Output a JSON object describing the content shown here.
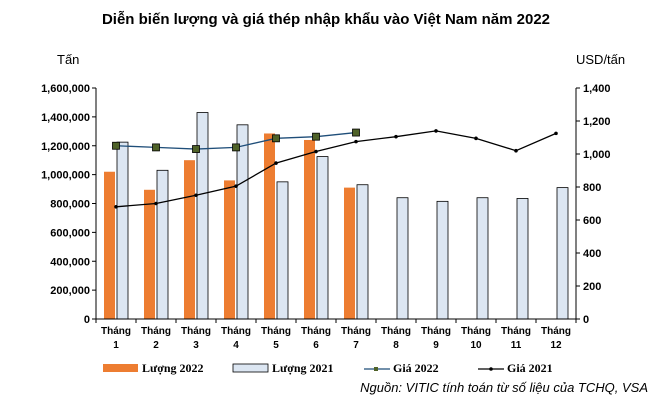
{
  "chart_data": {
    "type": "bar",
    "title": "Diễn biến lượng và giá thép nhập khẩu vào Việt Nam năm 2022",
    "ylabel_left": "Tấn",
    "ylabel_right": "USD/tấn",
    "categories": [
      [
        "Tháng",
        "1"
      ],
      [
        "Tháng",
        "2"
      ],
      [
        "Tháng",
        "3"
      ],
      [
        "Tháng",
        "4"
      ],
      [
        "Tháng",
        "5"
      ],
      [
        "Tháng",
        "6"
      ],
      [
        "Tháng",
        "7"
      ],
      [
        "Tháng",
        "8"
      ],
      [
        "Tháng",
        "9"
      ],
      [
        "Tháng",
        "10"
      ],
      [
        "Tháng",
        "11"
      ],
      [
        "Tháng",
        "12"
      ]
    ],
    "ylim_left": [
      0,
      1600000
    ],
    "ylim_right": [
      0,
      1400
    ],
    "yticks_left": [
      "0",
      "200,000",
      "400,000",
      "600,000",
      "800,000",
      "1,000,000",
      "1,200,000",
      "1,400,000",
      "1,600,000"
    ],
    "yticks_right": [
      "0",
      "200",
      "400",
      "600",
      "800",
      "1,000",
      "1,200",
      "1,400"
    ],
    "series": [
      {
        "name": "Lượng 2022",
        "kind": "bar",
        "axis": "left",
        "color": "#ED7D31",
        "values": [
          1020000,
          895000,
          1100000,
          960000,
          1285000,
          1240000,
          910000,
          null,
          null,
          null,
          null,
          null
        ]
      },
      {
        "name": "Lượng 2021",
        "kind": "bar",
        "axis": "left",
        "color": "#DCE6F2",
        "values": [
          1225000,
          1030000,
          1430000,
          1345000,
          950000,
          1125000,
          930000,
          840000,
          815000,
          840000,
          835000,
          910000
        ]
      },
      {
        "name": "Giá 2022",
        "kind": "line",
        "axis": "right",
        "color": "#1F4E79",
        "marker_color": "#4F6228",
        "values": [
          1050,
          1040,
          1030,
          1040,
          1095,
          1105,
          1130,
          null,
          null,
          null,
          null,
          null
        ]
      },
      {
        "name": "Giá 2021",
        "kind": "line",
        "axis": "right",
        "color": "#000000",
        "values": [
          680,
          700,
          750,
          805,
          945,
          1015,
          1075,
          1105,
          1140,
          1095,
          1020,
          1125
        ]
      }
    ],
    "legend": "bottom"
  },
  "source": "Nguồn: VITIC tính toán từ số liệu của TCHQ, VSA"
}
